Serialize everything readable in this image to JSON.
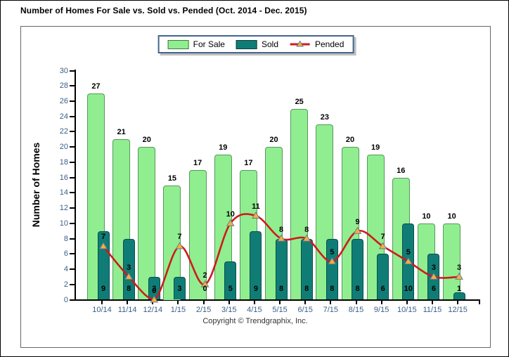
{
  "window": {
    "title": "Number of Homes For Sale vs. Sold vs. Pended (Oct. 2014 - Dec. 2015)"
  },
  "legend": {
    "items": [
      {
        "label": "For Sale",
        "type": "bar",
        "color": "#90EE90"
      },
      {
        "label": "Sold",
        "type": "bar",
        "color": "#0F7D75"
      },
      {
        "label": "Pended",
        "type": "line",
        "color": "#CE1B1B"
      }
    ]
  },
  "ylabel": "Number of Homes",
  "copyright": "Copyright © Trendgraphix, Inc.",
  "chart_data": {
    "type": "bar",
    "subtype": "two bar series with overlapping offset bars plus smoothed line series",
    "title": "Number of Homes For Sale vs. Sold vs. Pended (Oct. 2014 - Dec. 2015)",
    "categories": [
      "10/14",
      "11/14",
      "12/14",
      "1/15",
      "2/15",
      "3/15",
      "4/15",
      "5/15",
      "6/15",
      "7/15",
      "8/15",
      "9/15",
      "10/15",
      "11/15",
      "12/15"
    ],
    "series": [
      {
        "name": "For Sale",
        "type": "bar",
        "color": "#90EE90",
        "values": [
          27,
          21,
          20,
          15,
          17,
          19,
          17,
          20,
          25,
          23,
          20,
          19,
          16,
          10,
          10
        ]
      },
      {
        "name": "Sold",
        "type": "bar",
        "color": "#0F7D75",
        "values": [
          9,
          8,
          3,
          3,
          0,
          5,
          9,
          8,
          8,
          8,
          8,
          6,
          10,
          6,
          1
        ]
      },
      {
        "name": "Pended",
        "type": "line",
        "color": "#CE1B1B",
        "marker": "triangle",
        "marker_color": "#FFAD33",
        "values": [
          7,
          3,
          0,
          7,
          2,
          10,
          11,
          8,
          8,
          5,
          9,
          7,
          5,
          3,
          3
        ]
      }
    ],
    "xlabel": "",
    "ylabel": "Number of Homes",
    "ylim": [
      0,
      30
    ],
    "ytick_step": 2,
    "grid": false,
    "legend_position": "top-center",
    "value_labels": "all series labeled; Sold labels at bar base, For Sale above bars, Pended above markers"
  }
}
